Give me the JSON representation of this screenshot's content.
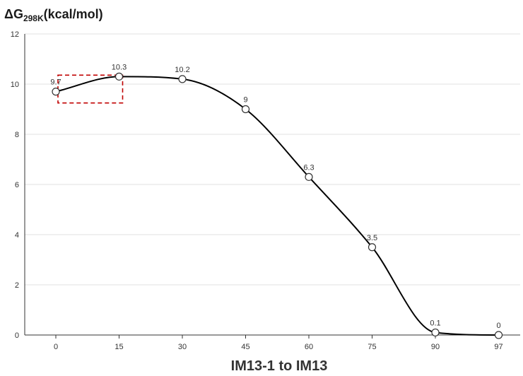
{
  "chart_data": {
    "type": "line",
    "ylabel_main": "ΔG",
    "ylabel_sub": "298K",
    "ylabel_unit": "(kcal/mol)",
    "xlabel": "IM13-1 to IM13",
    "ylim": [
      0,
      12
    ],
    "yticks": [
      "0",
      "2",
      "4",
      "6",
      "8",
      "10",
      "12"
    ],
    "categories": [
      "0",
      "15",
      "30",
      "45",
      "60",
      "75",
      "90",
      "97"
    ],
    "values": [
      9.7,
      10.3,
      10.2,
      9,
      6.3,
      3.5,
      0.1,
      0
    ],
    "data_labels": [
      "9.7",
      "10.3",
      "10.2",
      "9",
      "6.3",
      "3.5",
      "0.1",
      "0"
    ],
    "grid": true,
    "smooth": true,
    "highlight_box": {
      "from_index": 0,
      "to_index": 1,
      "color": "#c00000",
      "style": "dashed"
    },
    "colors": {
      "line": "#000000",
      "grid": "#e0e0e0",
      "axis": "#333333",
      "marker_fill": "#ffffff"
    }
  }
}
